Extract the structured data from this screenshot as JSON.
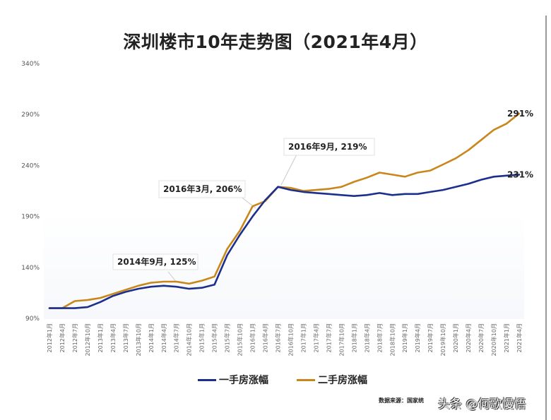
{
  "title": "深圳楼市10年走势图（2021年4月）",
  "colors": {
    "new_home": "#1c2f8c",
    "second_hand": "#c8871a",
    "axis_text": "#555555",
    "right_rule": "#9a9a9a"
  },
  "legend": {
    "items": [
      {
        "label": "一手房涨幅",
        "color": "#1c2f8c"
      },
      {
        "label": "二手房涨幅",
        "color": "#c8871a"
      }
    ]
  },
  "annotations": [
    {
      "text": "2014年9月, 125%"
    },
    {
      "text": "2016年3月, 206%"
    },
    {
      "text": "2016年9月, 219%"
    }
  ],
  "end_labels": {
    "second_hand": "291%",
    "new_home": "231%"
  },
  "footer": {
    "source": "数据来源：国家统",
    "watermark": "头条 @何歌慢悟"
  },
  "chart_data": {
    "type": "line",
    "title": "深圳楼市10年走势图（2021年4月）",
    "xlabel": "",
    "ylabel": "",
    "ylim": [
      90,
      340
    ],
    "yticks": [
      "90%",
      "140%",
      "190%",
      "240%",
      "290%",
      "340%"
    ],
    "grid": false,
    "legend_position": "bottom",
    "categories": [
      "2012年1月",
      "2012年4月",
      "2012年7月",
      "2012年10月",
      "2013年1月",
      "2013年4月",
      "2013年7月",
      "2013年10月",
      "2014年1月",
      "2014年4月",
      "2014年7月",
      "2014年10月",
      "2015年1月",
      "2015年4月",
      "2015年7月",
      "2015年10月",
      "2016年1月",
      "2016年4月",
      "2016年7月",
      "2016年10月",
      "2017年1月",
      "2017年4月",
      "2017年7月",
      "2017年10月",
      "2018年1月",
      "2018年4月",
      "2018年7月",
      "2018年10月",
      "2019年1月",
      "2019年4月",
      "2019年7月",
      "2019年10月",
      "2020年1月",
      "2020年4月",
      "2020年7月",
      "2020年10月",
      "2021年1月",
      "2021年4月"
    ],
    "series": [
      {
        "name": "一手房涨幅",
        "color": "#1c2f8c",
        "values": [
          100,
          100,
          100,
          101,
          106,
          112,
          116,
          119,
          121,
          122,
          121,
          119,
          120,
          123,
          152,
          172,
          190,
          206,
          219,
          216,
          214,
          213,
          212,
          211,
          210,
          211,
          213,
          211,
          212,
          212,
          214,
          216,
          219,
          222,
          226,
          229,
          230,
          231
        ]
      },
      {
        "name": "二手房涨幅",
        "color": "#c8871a",
        "values": [
          100,
          100,
          107,
          108,
          110,
          114,
          118,
          122,
          125,
          126,
          126,
          124,
          127,
          131,
          158,
          176,
          200,
          205,
          219,
          218,
          215,
          216,
          217,
          219,
          224,
          228,
          233,
          231,
          229,
          233,
          235,
          241,
          247,
          255,
          265,
          275,
          281,
          291
        ]
      }
    ],
    "annotations": [
      {
        "x": "2014年9月",
        "y": 125,
        "text": "2014年9月, 125%"
      },
      {
        "x": "2016年3月",
        "y": 206,
        "text": "2016年3月, 206%"
      },
      {
        "x": "2016年9月",
        "y": 219,
        "text": "2016年9月, 219%"
      }
    ],
    "end_labels": [
      {
        "series": "二手房涨幅",
        "text": "291%"
      },
      {
        "series": "一手房涨幅",
        "text": "231%"
      }
    ]
  }
}
